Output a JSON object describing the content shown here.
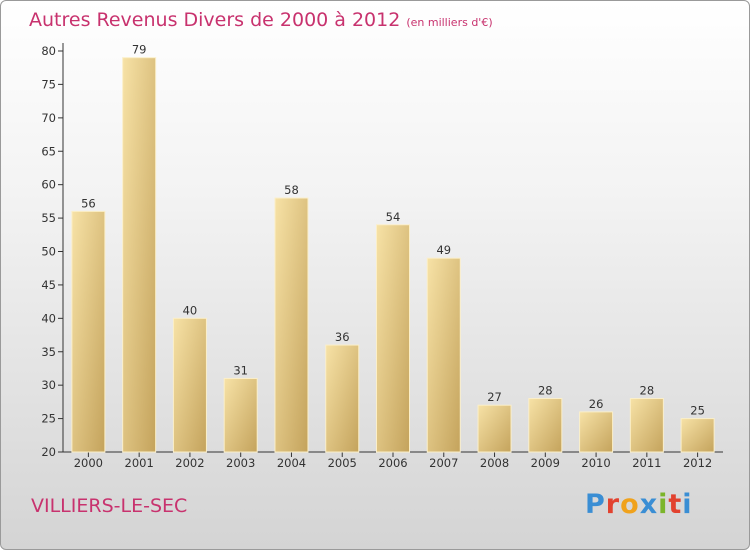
{
  "title": "Autres Revenus Divers de 2000 à 2012",
  "subtitle": "(en milliers d'€)",
  "place": "VILLIERS-LE-SEC",
  "logo": {
    "text": "Proxiti",
    "colors": [
      "#3a8ed4",
      "#e2422f",
      "#f0a21c",
      "#3a8ed4",
      "#7bb52a",
      "#e2422f",
      "#3a8ed4"
    ]
  },
  "colors": {
    "title": "#c8326e",
    "bar_light": "#f6dd9c",
    "bar_dark": "#c9a962",
    "axis": "#333333"
  },
  "chart_data": {
    "type": "bar",
    "categories": [
      "2000",
      "2001",
      "2002",
      "2003",
      "2004",
      "2005",
      "2006",
      "2007",
      "2008",
      "2009",
      "2010",
      "2011",
      "2012"
    ],
    "values": [
      56,
      79,
      40,
      31,
      58,
      36,
      54,
      49,
      27,
      28,
      26,
      28,
      25
    ],
    "ylim": [
      20,
      80
    ],
    "yticks": [
      20,
      25,
      30,
      35,
      40,
      45,
      50,
      55,
      60,
      65,
      70,
      75,
      80
    ],
    "xlabel": "",
    "ylabel": "",
    "grid": false,
    "data_labels": true
  }
}
